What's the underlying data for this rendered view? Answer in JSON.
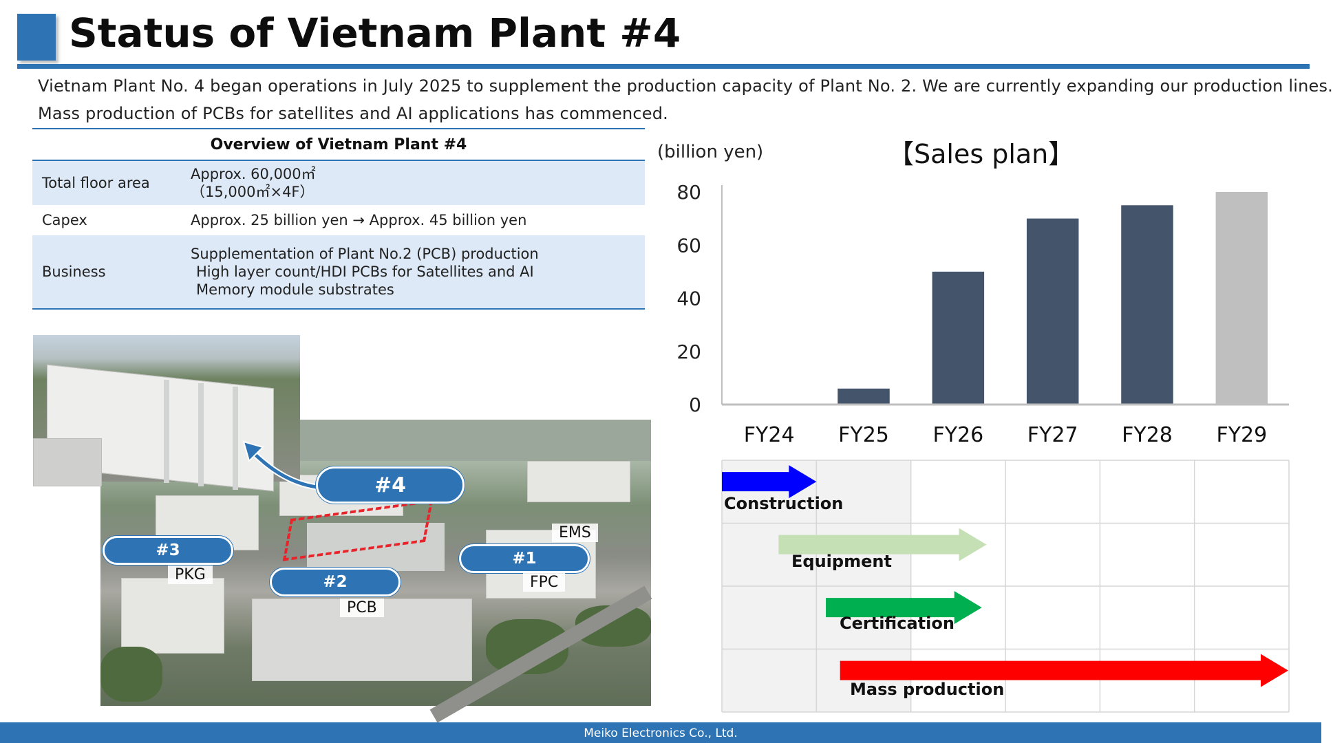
{
  "title": "Status of Vietnam Plant #4",
  "intro": {
    "line1": "Vietnam Plant No. 4 began operations in July 2025 to supplement the production capacity of Plant No. 2. We are currently expanding our production lines.",
    "line2": "Mass production of PCBs for satellites and AI applications has commenced."
  },
  "overview": {
    "header": "Overview of Vietnam Plant #4",
    "rows": [
      {
        "key": "Total floor area",
        "value_lines": [
          "Approx. 60,000㎡",
          "（15,000㎡×4F）"
        ]
      },
      {
        "key": "Capex",
        "value_lines": [
          "Approx. 25 billion yen →  Approx. 45 billion yen"
        ]
      },
      {
        "key": "Business",
        "value_lines": [
          "Supplementation of Plant No.2 (PCB) production",
          "High layer count/HDI PCBs for Satellites and AI",
          "Memory module substrates"
        ]
      }
    ]
  },
  "photo_labels": {
    "plant4": "#4",
    "plant3": "#3",
    "plant2": "#2",
    "plant1": "#1",
    "ems": "EMS",
    "pkg": "PKG",
    "pcb": "PCB",
    "fpc": "FPC"
  },
  "chart_data": {
    "type": "bar",
    "title": "【Sales plan】",
    "ylabel": "(billion yen)",
    "xlabel": "",
    "categories": [
      "FY24",
      "FY25",
      "FY26",
      "FY27",
      "FY28",
      "FY29"
    ],
    "values": [
      0,
      6,
      50,
      70,
      75,
      80
    ],
    "bar_colors": [
      "#44546a",
      "#44546a",
      "#44546a",
      "#44546a",
      "#44546a",
      "#bfbfbf"
    ],
    "ylim": [
      0,
      80
    ],
    "yticks": [
      0,
      20,
      40,
      60,
      80
    ],
    "grid": false,
    "legend": "none"
  },
  "schedule": {
    "columns": [
      "FY24",
      "FY25",
      "FY26",
      "FY27",
      "FY28",
      "FY29"
    ],
    "phases": [
      {
        "label": "Construction",
        "start": 0.0,
        "end": 1.0,
        "color": "#0000ff"
      },
      {
        "label": "Equipment",
        "start": 0.6,
        "end": 2.8,
        "color": "#c5e0b4"
      },
      {
        "label": "Certification",
        "start": 1.1,
        "end": 2.75,
        "color": "#00b050"
      },
      {
        "label": "Mass production",
        "start": 1.25,
        "end": 6.0,
        "color": "#ff0000"
      }
    ]
  },
  "footer": "Meiko Electronics Co., Ltd.",
  "colors": {
    "accent": "#2e74b5",
    "table_shade": "#dde9f6"
  }
}
